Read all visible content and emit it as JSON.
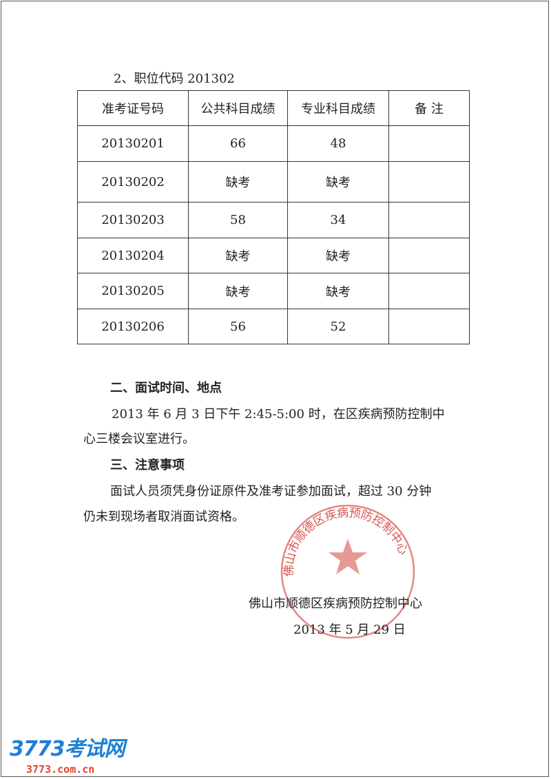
{
  "section_heading": "2、职位代码 201302",
  "table": {
    "headers": [
      "准考证号码",
      "公共科目成绩",
      "专业科目成绩",
      "备 注"
    ],
    "rows": [
      [
        "20130201",
        "66",
        "48",
        ""
      ],
      [
        "20130202",
        "缺考",
        "缺考",
        ""
      ],
      [
        "20130203",
        "58",
        "34",
        ""
      ],
      [
        "20130204",
        "缺考",
        "缺考",
        ""
      ],
      [
        "20130205",
        "缺考",
        "缺考",
        ""
      ],
      [
        "20130206",
        "56",
        "52",
        ""
      ]
    ]
  },
  "section2": {
    "title": "二、面试时间、地点",
    "line1": "2013 年 6 月 3 日下午 2:45-5:00 时，在区疾病预防控制中",
    "line2": "心三楼会议室进行。"
  },
  "section3": {
    "title": "三、注意事项",
    "line1": "面试人员须凭身份证原件及准考证参加面试，超过 30 分钟",
    "line2": "仍未到现场者取消面试资格。"
  },
  "signature": {
    "org": "佛山市顺德区疾病预防控制中心",
    "date": "2013 年 5 月 29 日"
  },
  "stamp": {
    "text": "佛山市顺德区疾病预防控制中心",
    "color": "#d9534f"
  },
  "logo": {
    "name": "3773考试网",
    "url_text": "3773.com.cn",
    "colors": {
      "blue": "#1e7fd6",
      "red": "#e5422b"
    }
  }
}
